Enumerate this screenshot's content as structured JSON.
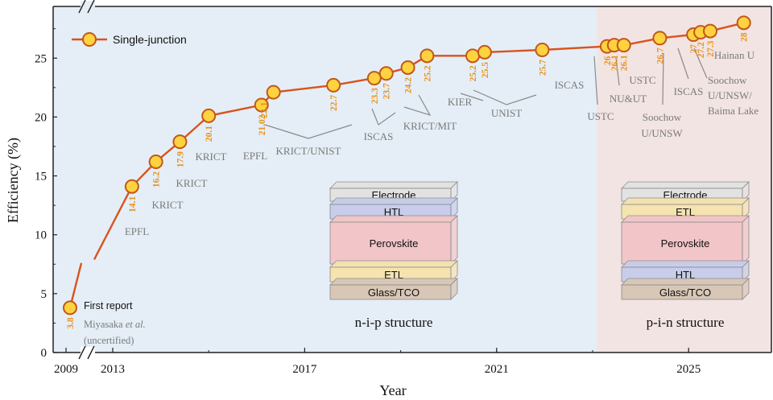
{
  "chart_data": {
    "type": "line",
    "xlabel": "Year",
    "ylabel": "Efficiency (%)",
    "xlim": [
      2012.2,
      2027.2
    ],
    "ylim": [
      0,
      29.5
    ],
    "x_ticks": [
      "2009",
      "2013",
      "2017",
      "2021",
      "2025"
    ],
    "y_ticks": [
      "0",
      "5",
      "10",
      "15",
      "20",
      "25"
    ],
    "legend": {
      "label": "Single-junction",
      "placement": "top-left"
    },
    "colors": {
      "line": "#D9531E",
      "marker_fill": "#FFD23F",
      "marker_edge": "#C0581A",
      "value_label": "#E8921E",
      "nip_region": "#E5EEF6",
      "pin_region": "#F2E4E2"
    },
    "points": [
      {
        "x": 2009.0,
        "y": 3.8,
        "label": "3.8"
      },
      {
        "x": 2013.4,
        "y": 14.1,
        "label": "14.1"
      },
      {
        "x": 2013.9,
        "y": 16.2,
        "label": "16.2"
      },
      {
        "x": 2014.4,
        "y": 17.9,
        "label": "17.9"
      },
      {
        "x": 2015.0,
        "y": 20.1,
        "label": "20.1"
      },
      {
        "x": 2016.1,
        "y": 21.02,
        "label": "21.02"
      },
      {
        "x": 2016.35,
        "y": 22.1,
        "label": "22.1"
      },
      {
        "x": 2017.6,
        "y": 22.7,
        "label": "22.7"
      },
      {
        "x": 2018.45,
        "y": 23.3,
        "label": "23.3"
      },
      {
        "x": 2018.7,
        "y": 23.7,
        "label": "23.7"
      },
      {
        "x": 2019.15,
        "y": 24.2,
        "label": "24.2"
      },
      {
        "x": 2019.55,
        "y": 25.2,
        "label": "25.2"
      },
      {
        "x": 2020.5,
        "y": 25.2,
        "label": "25.2"
      },
      {
        "x": 2020.75,
        "y": 25.5,
        "label": "25.5"
      },
      {
        "x": 2021.95,
        "y": 25.7,
        "label": "25.7"
      },
      {
        "x": 2023.3,
        "y": 26.0,
        "label": "26"
      },
      {
        "x": 2023.45,
        "y": 26.1,
        "label": "26.1"
      },
      {
        "x": 2023.65,
        "y": 26.1,
        "label": "26.1"
      },
      {
        "x": 2024.4,
        "y": 26.7,
        "label": "26.7"
      },
      {
        "x": 2025.1,
        "y": 27.0,
        "label": "27"
      },
      {
        "x": 2025.25,
        "y": 27.2,
        "label": "27.2"
      },
      {
        "x": 2025.45,
        "y": 27.3,
        "label": "27.3"
      },
      {
        "x": 2026.15,
        "y": 28.0,
        "label": "28"
      }
    ],
    "annotations": [
      "First report",
      "Miyasaka",
      "et al.",
      "(uncertified)",
      "EPFL",
      "KRICT",
      "KRICT",
      "KRICT",
      "EPFL",
      "KRICT/UNIST",
      "ISCAS",
      "KRICT/MIT",
      "KIER",
      "UNIST",
      "ISCAS",
      "USTC",
      "NU&UT",
      "USTC",
      "Soochow",
      "U/UNSW",
      "ISCAS",
      "Soochow",
      "U/UNSW/",
      "Baima Lake",
      "Hainan U"
    ],
    "structures": [
      {
        "name": "n-i-p structure",
        "layers": [
          "Electrode",
          "HTL",
          "Perovskite",
          "ETL",
          "Glass/TCO"
        ]
      },
      {
        "name": "p-i-n structure",
        "layers": [
          "Electrode",
          "ETL",
          "Perovskite",
          "HTL",
          "Glass/TCO"
        ]
      }
    ]
  }
}
